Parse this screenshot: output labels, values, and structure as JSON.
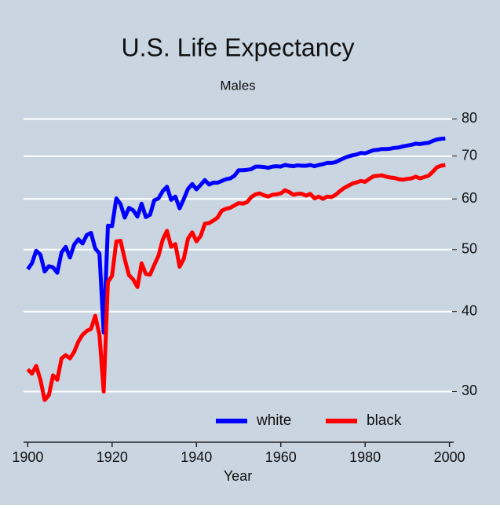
{
  "chart_data": {
    "type": "line",
    "title": "U.S. Life Expectancy",
    "subtitle": "Males",
    "xlabel": "Year",
    "x": [
      1900,
      1901,
      1902,
      1903,
      1904,
      1905,
      1906,
      1907,
      1908,
      1909,
      1910,
      1911,
      1912,
      1913,
      1914,
      1915,
      1916,
      1917,
      1918,
      1919,
      1920,
      1921,
      1922,
      1923,
      1924,
      1925,
      1926,
      1927,
      1928,
      1929,
      1930,
      1931,
      1932,
      1933,
      1934,
      1935,
      1936,
      1937,
      1938,
      1939,
      1940,
      1941,
      1942,
      1943,
      1944,
      1945,
      1946,
      1947,
      1948,
      1949,
      1950,
      1951,
      1952,
      1953,
      1954,
      1955,
      1956,
      1957,
      1958,
      1959,
      1960,
      1961,
      1962,
      1963,
      1964,
      1965,
      1966,
      1967,
      1968,
      1969,
      1970,
      1971,
      1972,
      1973,
      1974,
      1975,
      1976,
      1977,
      1978,
      1979,
      1980,
      1981,
      1982,
      1983,
      1984,
      1985,
      1986,
      1987,
      1988,
      1989,
      1990,
      1991,
      1992,
      1993,
      1994,
      1995,
      1996,
      1997,
      1998,
      1999
    ],
    "series": [
      {
        "name": "white",
        "color": "#0000ff",
        "values": [
          46.6,
          47.6,
          49.8,
          49.1,
          46.2,
          47.1,
          46.9,
          46.0,
          49.5,
          50.5,
          48.6,
          50.9,
          51.9,
          51.1,
          52.7,
          53.1,
          50.2,
          49.3,
          37.1,
          54.5,
          54.4,
          60.1,
          58.9,
          56.1,
          58.1,
          57.6,
          56.3,
          59.0,
          56.2,
          56.7,
          59.7,
          60.1,
          61.7,
          62.7,
          59.8,
          60.5,
          58.0,
          60.0,
          62.2,
          63.3,
          62.1,
          63.1,
          64.2,
          63.2,
          63.6,
          63.6,
          64.0,
          64.4,
          64.6,
          65.2,
          66.5,
          66.5,
          66.6,
          66.8,
          67.4,
          67.4,
          67.3,
          67.1,
          67.4,
          67.5,
          67.4,
          67.8,
          67.6,
          67.5,
          67.7,
          67.6,
          67.6,
          67.8,
          67.5,
          67.8,
          68.0,
          68.3,
          68.3,
          68.5,
          69.0,
          69.5,
          69.9,
          70.2,
          70.4,
          70.8,
          70.7,
          71.1,
          71.5,
          71.6,
          71.8,
          71.8,
          71.9,
          72.1,
          72.2,
          72.5,
          72.7,
          72.9,
          73.2,
          73.1,
          73.3,
          73.4,
          73.9,
          74.3,
          74.5,
          74.6
        ]
      },
      {
        "name": "black",
        "color": "#ff0000",
        "values": [
          32.5,
          32.0,
          32.9,
          31.3,
          29.1,
          29.6,
          31.8,
          31.3,
          33.8,
          34.2,
          33.8,
          34.6,
          35.9,
          36.8,
          37.3,
          37.6,
          39.4,
          36.8,
          30.0,
          44.5,
          45.5,
          51.5,
          51.6,
          48.3,
          45.6,
          44.9,
          43.7,
          47.6,
          45.8,
          45.7,
          47.3,
          48.9,
          51.8,
          53.5,
          50.5,
          51.0,
          47.0,
          48.4,
          52.0,
          53.2,
          51.5,
          52.5,
          54.9,
          55.0,
          55.5,
          56.1,
          57.5,
          57.9,
          58.1,
          58.6,
          59.1,
          59.0,
          59.3,
          60.4,
          61.0,
          61.2,
          60.8,
          60.5,
          60.9,
          61.0,
          61.2,
          61.9,
          61.5,
          60.9,
          61.1,
          61.1,
          60.7,
          61.1,
          60.1,
          60.5,
          60.0,
          60.5,
          60.4,
          60.9,
          61.7,
          62.4,
          62.9,
          63.4,
          63.7,
          64.0,
          63.8,
          64.5,
          65.1,
          65.2,
          65.3,
          65.0,
          64.8,
          64.7,
          64.4,
          64.3,
          64.5,
          64.6,
          65.0,
          64.6,
          64.9,
          65.2,
          66.1,
          67.2,
          67.6,
          67.8
        ]
      }
    ],
    "xlim": [
      1899,
      2001
    ],
    "xticks": [
      1900,
      1920,
      1940,
      1960,
      1980,
      2000
    ],
    "ylim": [
      25,
      85
    ],
    "yticks": [
      30,
      40,
      50,
      60,
      70,
      80
    ],
    "log_y": true,
    "grid": true,
    "legend": "lower right"
  }
}
